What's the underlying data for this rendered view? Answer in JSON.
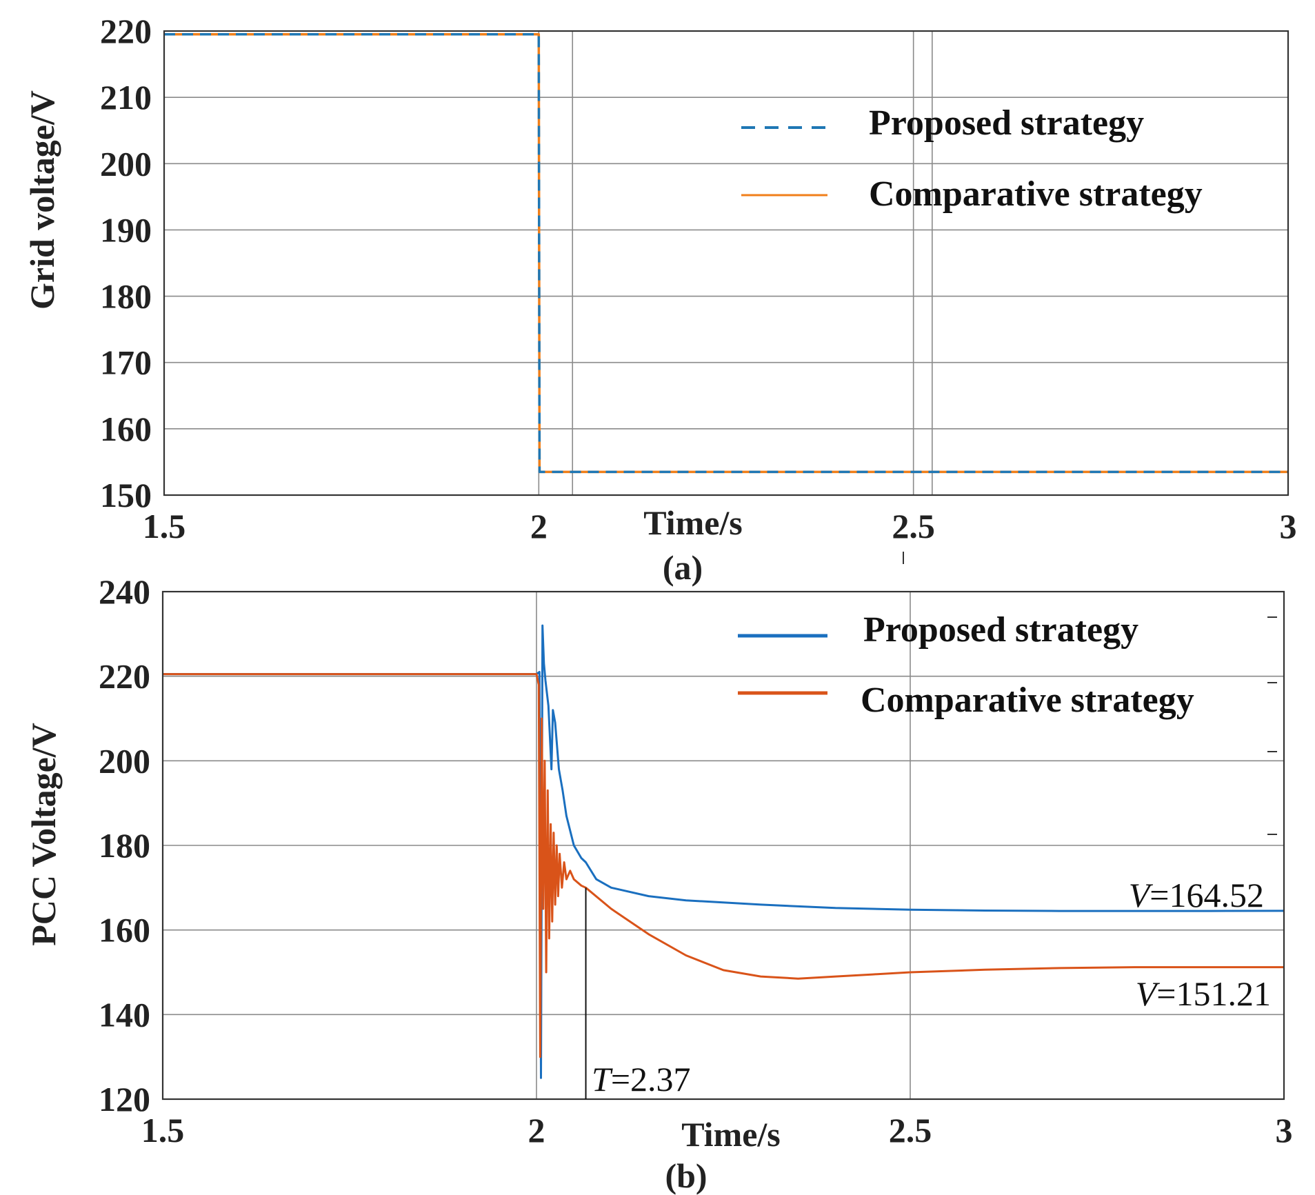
{
  "chart_data": [
    {
      "type": "line",
      "panel_label": "(a)",
      "xlabel": "Time/s",
      "ylabel": "Grid voltage/V",
      "xlim": [
        1.5,
        3
      ],
      "ylim": [
        150,
        220
      ],
      "x_ticks": [
        "1.5",
        "2",
        "2.5",
        "3"
      ],
      "y_ticks": [
        "150",
        "160",
        "170",
        "180",
        "190",
        "200",
        "210",
        "220"
      ],
      "grid": true,
      "legend": "right",
      "series": [
        {
          "name": "Proposed strategy",
          "color": "#1f77b4",
          "style": "dashed",
          "x": [
            1.5,
            2.0,
            2.001,
            3.0
          ],
          "y": [
            219.5,
            219.5,
            153.5,
            153.5
          ]
        },
        {
          "name": "Comparative strategy",
          "color": "#f07f1a",
          "style": "solid",
          "x": [
            1.5,
            2.0,
            2.001,
            3.0
          ],
          "y": [
            219.5,
            219.5,
            153.5,
            153.5
          ]
        }
      ]
    },
    {
      "type": "line",
      "panel_label": "(b)",
      "xlabel": "Time/s",
      "ylabel": "PCC Voltage/V",
      "xlim": [
        1.5,
        3
      ],
      "ylim": [
        120,
        240
      ],
      "x_ticks": [
        "1.5",
        "2",
        "2.5",
        "3"
      ],
      "y_ticks": [
        "120",
        "140",
        "160",
        "180",
        "200",
        "220",
        "240"
      ],
      "grid": true,
      "legend": "top-right",
      "series": [
        {
          "name": "Proposed strategy",
          "color": "#1a6fbf",
          "style": "solid",
          "x": [
            1.5,
            2.0,
            2.004,
            2.006,
            2.008,
            2.01,
            2.012,
            2.016,
            2.02,
            2.022,
            2.025,
            2.03,
            2.035,
            2.04,
            2.05,
            2.06,
            2.066,
            2.08,
            2.1,
            2.15,
            2.2,
            2.3,
            2.4,
            2.5,
            2.6,
            2.7,
            2.8,
            2.9,
            3.0
          ],
          "y": [
            220.5,
            220.5,
            221,
            125,
            232,
            223,
            219,
            213,
            198,
            212,
            209,
            198,
            193,
            187,
            180,
            177,
            176,
            172,
            170,
            168,
            167,
            166,
            165.2,
            164.8,
            164.6,
            164.5,
            164.5,
            164.5,
            164.52
          ]
        },
        {
          "name": "Comparative strategy",
          "color": "#d95319",
          "style": "solid",
          "x": [
            1.5,
            2.0,
            2.003,
            2.005,
            2.007,
            2.009,
            2.011,
            2.013,
            2.015,
            2.017,
            2.019,
            2.021,
            2.023,
            2.025,
            2.027,
            2.029,
            2.031,
            2.034,
            2.037,
            2.04,
            2.045,
            2.05,
            2.06,
            2.066,
            2.1,
            2.15,
            2.2,
            2.25,
            2.3,
            2.35,
            2.4,
            2.45,
            2.5,
            2.6,
            2.7,
            2.8,
            2.9,
            3.0
          ],
          "y": [
            220.5,
            220.5,
            218,
            130,
            210,
            165,
            200,
            150,
            193,
            158,
            185,
            162,
            183,
            166,
            180,
            168,
            178,
            170,
            176,
            172,
            174,
            172,
            170.5,
            170,
            165,
            159,
            154,
            150.5,
            149,
            148.5,
            149,
            149.5,
            150,
            150.6,
            151,
            151.2,
            151.2,
            151.21
          ]
        }
      ],
      "annotations": [
        {
          "prefix": "V",
          "text": "=164.52"
        },
        {
          "prefix": "V",
          "text": "=151.21"
        },
        {
          "prefix": "T",
          "text": "=2.37"
        }
      ]
    }
  ]
}
